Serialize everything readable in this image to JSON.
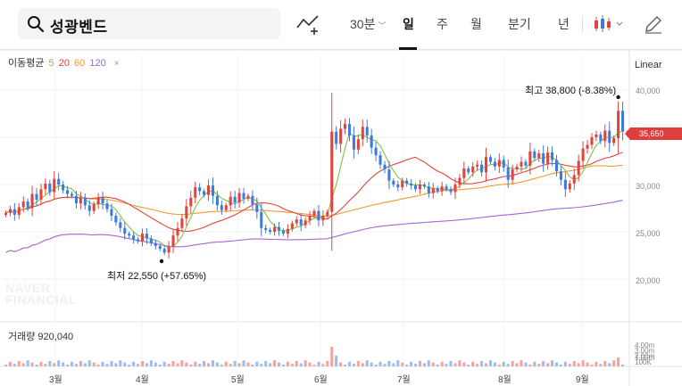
{
  "search": {
    "stock_name": "성광벤드"
  },
  "toolbar": {
    "interval": "30분",
    "periods": [
      "일",
      "주",
      "월",
      "분기",
      "년"
    ],
    "active_period": "일"
  },
  "ma_legend": {
    "label": "이동평균",
    "periods": [
      {
        "value": "5",
        "color": "#7cc34a"
      },
      {
        "value": "20",
        "color": "#e0443e"
      },
      {
        "value": "60",
        "color": "#f39a2c"
      },
      {
        "value": "120",
        "color": "#a266d6"
      }
    ],
    "close": "×"
  },
  "scale": "Linear",
  "y_axis": [
    "40,000",
    "35,000",
    "30,000",
    "25,000",
    "20,000"
  ],
  "current_price": "35,650",
  "annotations": {
    "high": "최고 38,800 (-8.38%)",
    "low": "최저 22,550 (+57.65%)"
  },
  "watermark": [
    "NAVER",
    "FINANCIAL"
  ],
  "volume": {
    "label": "거래량 920,040",
    "axis": [
      "4.00m",
      "3.00m",
      "2.00m",
      "1.00m",
      "100K"
    ]
  },
  "months": [
    "3월",
    "4월",
    "5월",
    "6월",
    "7월",
    "8월",
    "9월"
  ],
  "colors": {
    "up": "#e0443e",
    "down": "#3d7be0",
    "ma5": "#7cc34a",
    "ma20": "#e0443e",
    "ma60": "#f39a2c",
    "ma120": "#a266d6"
  },
  "chart_data": {
    "type": "candlestick",
    "y_unit": "KRW",
    "ylim": [
      17500,
      42500
    ],
    "grid": true,
    "x_labels": [
      "3월",
      "4월",
      "5월",
      "6월",
      "7월",
      "8월",
      "9월"
    ],
    "close": [
      27000,
      27400,
      26800,
      27600,
      28200,
      27500,
      29000,
      28400,
      29500,
      30100,
      29200,
      30600,
      30000,
      29400,
      29000,
      28800,
      28000,
      28600,
      27800,
      27200,
      27900,
      28600,
      28000,
      27400,
      26700,
      26000,
      25400,
      24800,
      24600,
      24200,
      24000,
      24800,
      24300,
      23800,
      23500,
      23200,
      22800,
      23400,
      24600,
      25400,
      26400,
      27700,
      28600,
      29700,
      29300,
      28900,
      29900,
      28800,
      27800,
      27300,
      27800,
      28700,
      28100,
      29100,
      28500,
      28800,
      27900,
      27100,
      25400,
      25200,
      25000,
      25500,
      25100,
      24800,
      25300,
      25900,
      26300,
      25700,
      26200,
      26700,
      27200,
      26200,
      26700,
      27100,
      35600,
      34300,
      35900,
      36400,
      35200,
      33700,
      34800,
      36100,
      35200,
      33900,
      33100,
      32100,
      31600,
      30400,
      30000,
      29700,
      30400,
      30100,
      29900,
      29500,
      30000,
      29800,
      29100,
      29600,
      29300,
      29800,
      29500,
      29200,
      30000,
      30700,
      31700,
      31300,
      31900,
      32100,
      31300,
      32900,
      32400,
      31900,
      32600,
      31800,
      30500,
      31600,
      31900,
      32400,
      32000,
      33500,
      32800,
      33300,
      32200,
      33400,
      32600,
      31400,
      30500,
      29500,
      30100,
      31000,
      32500,
      33800,
      34200,
      35000,
      35300,
      34600,
      35700,
      34400,
      34900,
      37800,
      35650
    ]
  }
}
